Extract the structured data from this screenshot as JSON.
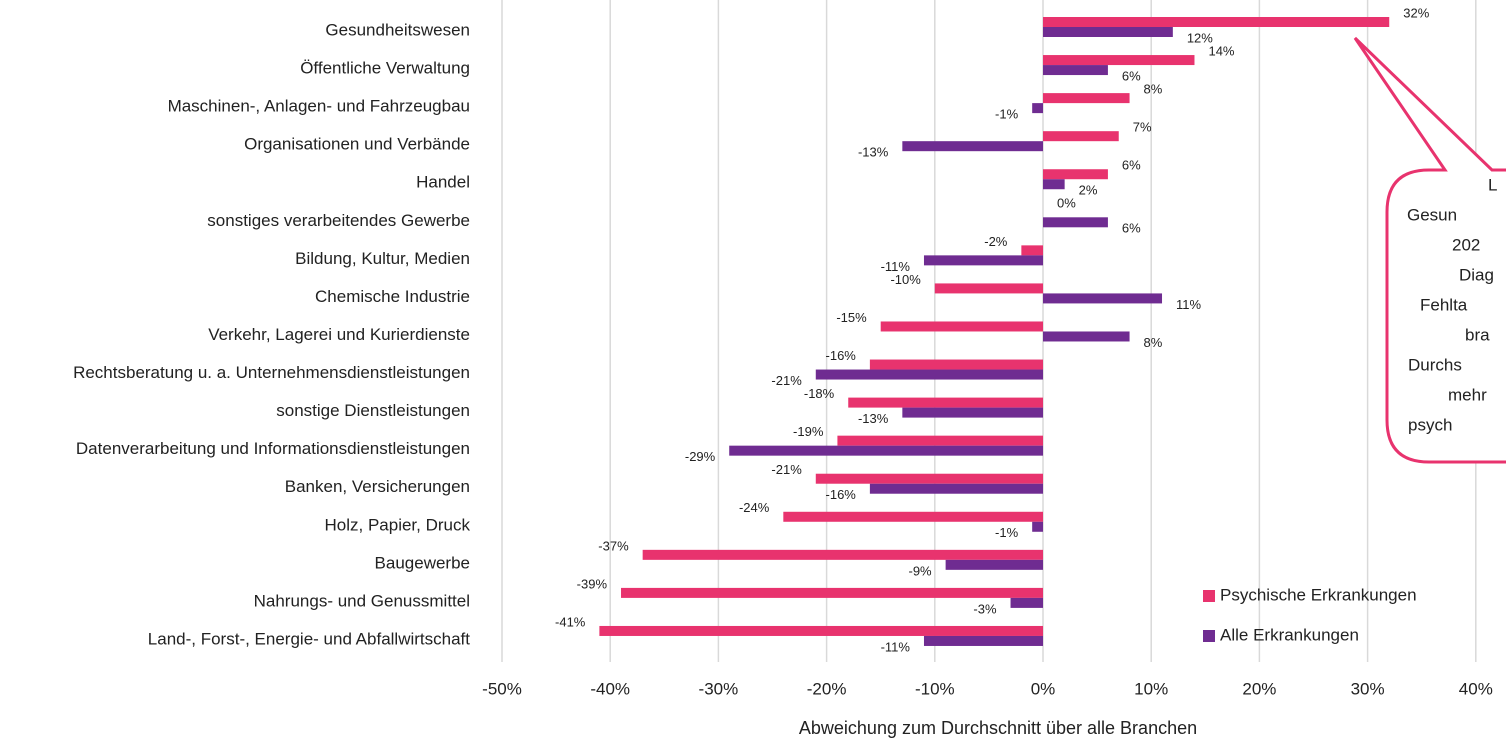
{
  "chart_data": {
    "type": "bar",
    "orientation": "horizontal",
    "xlabel": "Abweichung zum Durchschnitt über alle Branchen",
    "categories": [
      "Gesundheitswesen",
      "Öffentliche Verwaltung",
      "Maschinen-, Anlagen- und Fahrzeugbau",
      "Organisationen und Verbände",
      "Handel",
      "sonstiges verarbeitendes Gewerbe",
      "Bildung, Kultur, Medien",
      "Chemische Industrie",
      "Verkehr, Lagerei und Kurierdienste",
      "Rechtsberatung u. a. Unternehmensdienstleistungen",
      "sonstige Dienstleistungen",
      "Datenverarbeitung und Informationsdienstleistungen",
      "Banken, Versicherungen",
      "Holz, Papier, Druck",
      "Baugewerbe",
      "Nahrungs- und Genussmittel",
      "Land-, Forst-,  Energie- und Abfallwirtschaft"
    ],
    "series": [
      {
        "name": "Psychische Erkrankungen",
        "color": "#e8336e",
        "values": [
          32,
          14,
          8,
          7,
          6,
          0,
          -2,
          -10,
          -15,
          -16,
          -18,
          -19,
          -21,
          -24,
          -37,
          -39,
          -41
        ],
        "value_labels": [
          "32%",
          "14%",
          "8%",
          "7%",
          "6%",
          "0%",
          "-2%",
          "-10%",
          "-15%",
          "-16%",
          "-18%",
          "-19%",
          "-21%",
          "-24%",
          "-37%",
          "-39%",
          "-41%"
        ]
      },
      {
        "name": "Alle  Erkrankungen",
        "color": "#6f2c91",
        "values": [
          12,
          6,
          -1,
          -13,
          2,
          6,
          -11,
          11,
          8,
          -21,
          -13,
          -29,
          -16,
          -1,
          -9,
          -3,
          -11
        ],
        "value_labels": [
          "12%",
          "6%",
          "-1%",
          "-13%",
          "2%",
          "6%",
          "-11%",
          "11%",
          "8%",
          "-21%",
          "-13%",
          "-29%",
          "-16%",
          "-1%",
          "-9%",
          "-3%",
          "-11%"
        ]
      }
    ],
    "xlim": [
      -50,
      50
    ],
    "xticks": [
      {
        "value": -50,
        "label": "-50%"
      },
      {
        "value": -40,
        "label": "-40%"
      },
      {
        "value": -30,
        "label": "-30%"
      },
      {
        "value": -20,
        "label": "-20%"
      },
      {
        "value": -10,
        "label": "-10%"
      },
      {
        "value": 0,
        "label": "0%"
      },
      {
        "value": 10,
        "label": "10%"
      },
      {
        "value": 20,
        "label": "20%"
      },
      {
        "value": 30,
        "label": "30%"
      },
      {
        "value": 40,
        "label": "40%"
      }
    ],
    "grid": true,
    "legend": "lower right",
    "annotation_lines": [
      "L",
      "Gesun",
      "202",
      "Diag",
      "Fehlta",
      "bra",
      "Durchs",
      "mehr",
      "psych"
    ]
  }
}
